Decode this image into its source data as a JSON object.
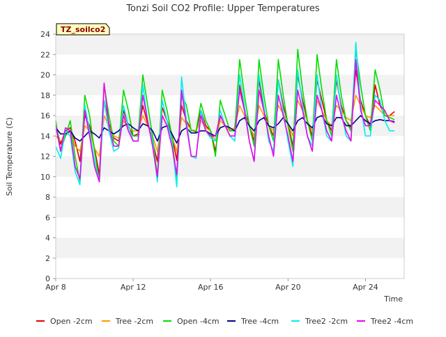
{
  "chart_data": {
    "type": "line",
    "title": "Tonzi Soil CO2 Profile: Upper Temperatures",
    "xlabel": "Time",
    "ylabel": "Soil Temperature (C)",
    "annotation": "TZ_soilco2",
    "xlim": [
      "Apr 8",
      "Apr 26"
    ],
    "ylim": [
      0,
      24
    ],
    "x_ticks": [
      "Apr 8",
      "Apr 12",
      "Apr 16",
      "Apr 20",
      "Apr 24"
    ],
    "y_ticks": [
      0,
      2,
      4,
      6,
      8,
      10,
      12,
      14,
      16,
      18,
      20,
      22,
      24
    ],
    "grid": "horizontal bands",
    "legend_position": "bottom",
    "x_day_offsets": [
      0,
      0.25,
      0.5,
      0.75,
      1,
      1.25,
      1.5,
      1.75,
      2,
      2.25,
      2.5,
      2.75,
      3,
      3.25,
      3.5,
      3.75,
      4,
      4.25,
      4.5,
      4.75,
      5,
      5.25,
      5.5,
      5.75,
      6,
      6.25,
      6.5,
      6.75,
      7,
      7.25,
      7.5,
      7.75,
      8,
      8.25,
      8.5,
      8.75,
      9,
      9.25,
      9.5,
      9.75,
      10,
      10.25,
      10.5,
      10.75,
      11,
      11.25,
      11.5,
      11.75,
      12,
      12.25,
      12.5,
      12.75,
      13,
      13.25,
      13.5,
      13.75,
      14,
      14.25,
      14.5,
      14.75,
      15,
      15.25,
      15.5,
      15.75,
      16,
      16.25,
      16.5,
      16.75,
      17,
      17.25,
      17.5
    ],
    "series": [
      {
        "name": "Open -2cm",
        "color": "#dd0000",
        "values": [
          15.0,
          13.2,
          14.5,
          14.8,
          13.5,
          11.5,
          16.0,
          15.0,
          12.8,
          10.2,
          17.5,
          15.2,
          13.8,
          13.5,
          16.5,
          15.0,
          14.0,
          14.2,
          17.0,
          15.2,
          13.5,
          11.5,
          16.8,
          15.5,
          14.2,
          11.6,
          17.0,
          15.5,
          14.6,
          14.4,
          16.5,
          15.0,
          14.5,
          12.5,
          16.0,
          15.0,
          14.5,
          14.8,
          19.0,
          16.5,
          15.0,
          13.5,
          19.5,
          16.5,
          15.0,
          14.0,
          19.5,
          17.0,
          15.2,
          13.0,
          20.0,
          17.5,
          15.5,
          14.0,
          19.5,
          17.5,
          15.5,
          14.5,
          19.5,
          17.0,
          15.5,
          14.8,
          20.5,
          17.5,
          16.0,
          15.0,
          19.0,
          17.0,
          16.0,
          16.0,
          16.4
        ]
      },
      {
        "name": "Tree -2cm",
        "color": "#ff9900",
        "values": [
          14.0,
          13.5,
          14.0,
          14.5,
          13.0,
          12.5,
          15.0,
          14.5,
          12.8,
          12.0,
          16.0,
          15.0,
          14.0,
          13.8,
          15.5,
          14.8,
          14.5,
          14.5,
          16.0,
          15.0,
          14.0,
          12.5,
          16.0,
          15.0,
          14.0,
          12.5,
          15.8,
          15.2,
          14.6,
          14.5,
          15.5,
          14.8,
          14.5,
          13.5,
          15.5,
          15.0,
          14.5,
          14.8,
          17.0,
          16.0,
          15.0,
          14.0,
          17.0,
          16.0,
          15.0,
          14.5,
          17.0,
          16.2,
          15.2,
          14.0,
          17.5,
          16.5,
          15.5,
          14.5,
          17.5,
          16.5,
          15.5,
          15.0,
          17.0,
          16.5,
          15.8,
          15.5,
          18.0,
          17.0,
          16.0,
          15.8,
          17.0,
          16.5,
          16.0,
          16.0,
          16.0
        ]
      },
      {
        "name": "Open -4cm",
        "color": "#00dd00",
        "values": [
          15.5,
          12.5,
          14.0,
          15.5,
          12.0,
          9.5,
          18.0,
          16.0,
          12.5,
          9.5,
          19.0,
          16.0,
          13.5,
          13.0,
          18.5,
          16.5,
          14.0,
          14.0,
          20.0,
          17.0,
          14.0,
          10.0,
          18.5,
          16.5,
          14.0,
          9.5,
          18.0,
          17.0,
          14.5,
          14.5,
          17.2,
          15.5,
          14.5,
          12.0,
          17.5,
          16.0,
          14.5,
          14.5,
          21.5,
          18.0,
          15.0,
          13.0,
          21.5,
          18.0,
          15.0,
          13.5,
          21.5,
          18.0,
          15.0,
          12.5,
          22.5,
          18.5,
          15.5,
          13.5,
          22.0,
          18.5,
          15.5,
          14.0,
          21.5,
          18.0,
          15.5,
          14.5,
          22.5,
          19.0,
          16.0,
          14.5,
          20.5,
          18.5,
          16.0,
          15.8,
          15.6
        ]
      },
      {
        "name": "Tree -4cm",
        "color": "#00008b",
        "values": [
          14.8,
          14.2,
          14.2,
          14.5,
          13.8,
          13.5,
          14.0,
          14.5,
          14.2,
          13.8,
          14.8,
          14.5,
          14.2,
          14.5,
          15.0,
          15.2,
          14.8,
          14.5,
          15.2,
          15.0,
          14.5,
          13.5,
          14.8,
          15.0,
          14.2,
          13.3,
          14.5,
          14.8,
          14.3,
          14.3,
          14.5,
          14.5,
          14.2,
          14.0,
          14.8,
          15.0,
          14.8,
          14.5,
          15.5,
          15.8,
          15.0,
          14.5,
          15.5,
          15.8,
          15.0,
          14.8,
          15.2,
          15.8,
          15.2,
          14.5,
          15.5,
          15.8,
          15.2,
          14.8,
          15.8,
          16.0,
          15.2,
          15.0,
          15.8,
          15.8,
          15.0,
          15.0,
          15.5,
          16.0,
          15.5,
          15.2,
          15.5,
          15.6,
          15.5,
          15.5,
          15.4
        ]
      },
      {
        "name": "Tree2 -2cm",
        "color": "#00eeee",
        "values": [
          13.0,
          11.8,
          14.5,
          14.0,
          10.5,
          9.2,
          17.0,
          14.5,
          11.5,
          9.5,
          17.5,
          14.5,
          12.5,
          12.8,
          17.0,
          15.0,
          13.5,
          13.5,
          19.0,
          15.5,
          13.5,
          9.5,
          17.5,
          15.5,
          13.5,
          9.0,
          19.8,
          15.5,
          12.0,
          11.8,
          16.5,
          14.5,
          13.8,
          13.5,
          16.5,
          15.0,
          14.0,
          13.5,
          20.0,
          17.0,
          13.5,
          11.5,
          20.0,
          17.0,
          13.5,
          12.5,
          19.5,
          16.5,
          13.5,
          11.0,
          20.5,
          17.0,
          14.0,
          13.0,
          20.0,
          16.5,
          14.0,
          13.5,
          20.0,
          16.5,
          14.0,
          13.5,
          23.2,
          17.0,
          14.0,
          14.0,
          18.0,
          17.5,
          15.5,
          14.5,
          14.5
        ]
      },
      {
        "name": "Tree2 -4cm",
        "color": "#ee00ee",
        "values": [
          15.0,
          12.5,
          14.8,
          14.5,
          11.0,
          9.8,
          16.5,
          14.0,
          11.0,
          9.5,
          19.2,
          15.0,
          13.0,
          13.0,
          16.0,
          14.5,
          13.5,
          13.5,
          18.0,
          15.5,
          13.0,
          10.0,
          16.0,
          15.0,
          13.0,
          10.2,
          18.5,
          15.0,
          12.0,
          12.0,
          16.0,
          14.5,
          14.0,
          14.0,
          16.0,
          15.0,
          14.0,
          14.0,
          18.5,
          16.5,
          13.5,
          11.5,
          18.5,
          16.5,
          14.0,
          12.0,
          18.0,
          16.0,
          14.0,
          11.5,
          18.5,
          16.5,
          14.0,
          12.5,
          18.0,
          16.5,
          14.5,
          13.5,
          18.0,
          16.0,
          14.5,
          13.5,
          21.5,
          16.5,
          15.0,
          15.0,
          17.5,
          17.0,
          16.5,
          15.5,
          15.3
        ]
      }
    ]
  }
}
